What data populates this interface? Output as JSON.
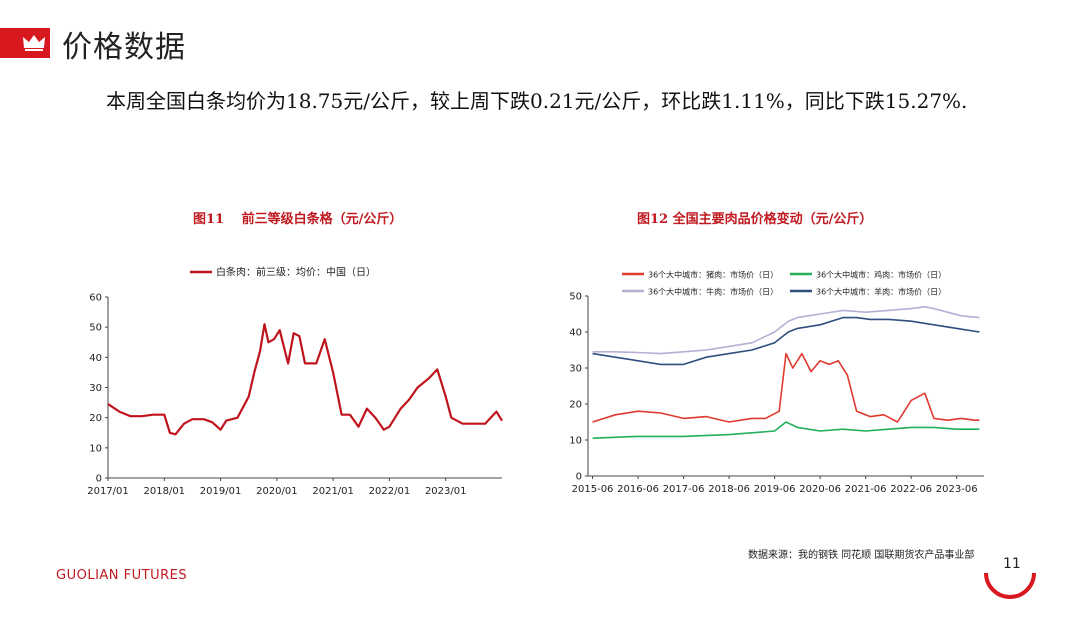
{
  "header": {
    "title": "价格数据",
    "summary": "本周全国白条均价为18.75元/公斤，较上周下跌0.21元/公斤，环比跌1.11%，同比下跌15.27%."
  },
  "colors": {
    "accent": "#d7191f",
    "pork": "#e03a2f",
    "chicken": "#22b05a",
    "beef": "#b7aed3",
    "lamb": "#2f4f7f",
    "series1": "#c0141c"
  },
  "chart_data": [
    {
      "type": "line",
      "title": "图11　 前三等级白条格（元/公斤）",
      "legend": "top",
      "x_tick_labels": [
        "2017/01",
        "2018/01",
        "2019/01",
        "2020/01",
        "2021/01",
        "2022/01",
        "2023/01"
      ],
      "ylim": [
        0,
        60
      ],
      "y_ticks": [
        "0",
        "10",
        "20",
        "30",
        "40",
        "50",
        "60"
      ],
      "series": [
        {
          "name": "白条肉：前三级：均价：中国（日）",
          "color": "#c0141c",
          "x": [
            2017.0,
            2017.2,
            2017.4,
            2017.6,
            2017.8,
            2018.0,
            2018.1,
            2018.2,
            2018.35,
            2018.5,
            2018.7,
            2018.85,
            2019.0,
            2019.1,
            2019.3,
            2019.5,
            2019.6,
            2019.7,
            2019.78,
            2019.85,
            2019.95,
            2020.05,
            2020.2,
            2020.3,
            2020.4,
            2020.5,
            2020.7,
            2020.85,
            2021.0,
            2021.15,
            2021.3,
            2021.45,
            2021.6,
            2021.75,
            2021.9,
            2022.0,
            2022.2,
            2022.35,
            2022.5,
            2022.7,
            2022.85,
            2023.0,
            2023.1,
            2023.3,
            2023.5,
            2023.7,
            2023.9,
            2024.0
          ],
          "y": [
            24.5,
            22,
            20.5,
            20.5,
            21,
            21,
            15,
            14.5,
            18,
            19.5,
            19.5,
            18.5,
            16,
            19,
            20,
            27,
            35,
            42,
            51,
            45,
            46,
            49,
            38,
            48,
            47,
            38,
            38,
            46,
            35,
            21,
            21,
            17,
            23,
            20,
            16,
            17,
            23,
            26,
            30,
            33,
            36,
            27,
            20,
            18,
            18,
            18,
            22,
            19
          ]
        }
      ]
    },
    {
      "type": "line",
      "title": "图12 全国主要肉品价格变动（元/公斤）",
      "legend": "top",
      "x_tick_labels": [
        "2015-06",
        "2016-06",
        "2017-06",
        "2018-06",
        "2019-06",
        "2020-06",
        "2021-06",
        "2022-06",
        "2023-06"
      ],
      "ylim": [
        0,
        50
      ],
      "y_ticks": [
        "0",
        "10",
        "20",
        "30",
        "40",
        "50"
      ],
      "series": [
        {
          "name": "36个大中城市：猪肉：市场价（日）",
          "color": "#e03a2f",
          "x": [
            2015.5,
            2016.0,
            2016.5,
            2017.0,
            2017.5,
            2018.0,
            2018.5,
            2019.0,
            2019.3,
            2019.6,
            2019.75,
            2019.9,
            2020.1,
            2020.3,
            2020.5,
            2020.7,
            2020.9,
            2021.1,
            2021.3,
            2021.6,
            2021.9,
            2022.2,
            2022.5,
            2022.8,
            2023.0,
            2023.3,
            2023.6,
            2023.9,
            2024.0
          ],
          "y": [
            15,
            17,
            18,
            17.5,
            16,
            16.5,
            15,
            16,
            16,
            18,
            34,
            30,
            34,
            29,
            32,
            31,
            32,
            28,
            18,
            16.5,
            17,
            15,
            21,
            23,
            16,
            15.5,
            16,
            15.5,
            15.5
          ]
        },
        {
          "name": "36个大中城市：鸡肉：市场价（日）",
          "color": "#22b05a",
          "x": [
            2015.5,
            2016.5,
            2017.5,
            2018.5,
            2019.5,
            2019.75,
            2020.0,
            2020.5,
            2021.0,
            2021.5,
            2022.0,
            2022.5,
            2023.0,
            2023.5,
            2024.0
          ],
          "y": [
            10.5,
            11,
            11,
            11.5,
            12.5,
            15,
            13.5,
            12.5,
            13,
            12.5,
            13,
            13.5,
            13.5,
            13,
            13
          ]
        },
        {
          "name": "36个大中城市：牛肉：市场价（日）",
          "color": "#b7aed3",
          "x": [
            2015.5,
            2016.0,
            2016.5,
            2017.0,
            2017.5,
            2018.0,
            2018.5,
            2019.0,
            2019.5,
            2019.8,
            2020.0,
            2020.5,
            2021.0,
            2021.5,
            2022.0,
            2022.5,
            2022.8,
            2023.0,
            2023.3,
            2023.6,
            2024.0
          ],
          "y": [
            34.5,
            34.5,
            34.3,
            34,
            34.5,
            35,
            36,
            37,
            40,
            43,
            44,
            45,
            46,
            45.5,
            46,
            46.5,
            47,
            46.5,
            45.5,
            44.5,
            44
          ]
        },
        {
          "name": "36个大中城市：羊肉：市场价（日）",
          "color": "#2f4f7f",
          "x": [
            2015.5,
            2016.0,
            2016.5,
            2017.0,
            2017.5,
            2018.0,
            2018.5,
            2019.0,
            2019.5,
            2019.8,
            2020.0,
            2020.5,
            2021.0,
            2021.3,
            2021.6,
            2022.0,
            2022.5,
            2023.0,
            2023.5,
            2024.0
          ],
          "y": [
            34,
            33,
            32,
            31,
            31,
            33,
            34,
            35,
            37,
            40,
            41,
            42,
            44,
            44,
            43.5,
            43.5,
            43,
            42,
            41,
            40
          ]
        }
      ]
    }
  ],
  "footer": {
    "source": "数据来源：我的钢铁  同花顺  国联期货农产品事业部",
    "brand": "GUOLIAN FUTURES",
    "page": "11"
  }
}
